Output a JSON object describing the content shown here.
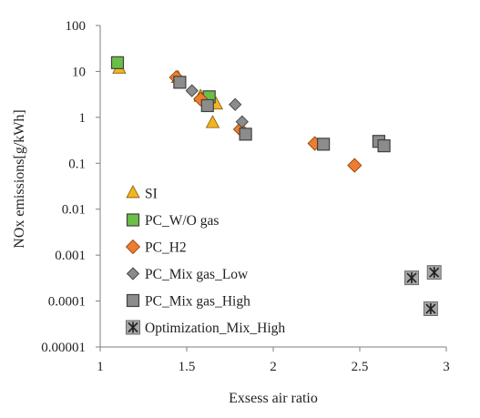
{
  "chart_data": {
    "type": "scatter",
    "xlabel": "Exsess air ratio",
    "ylabel": "NOx emissions[g/kWh]",
    "xlim": [
      1,
      3
    ],
    "ylim": [
      1e-05,
      100
    ],
    "yscale": "log",
    "grid": false,
    "legend_position": "inside-left",
    "x_ticks": [
      "1",
      "1.5",
      "2",
      "2.5",
      "3"
    ],
    "y_ticks": [
      "0.00001",
      "0.0001",
      "0.001",
      "0.01",
      "0.1",
      "1",
      "10",
      "100"
    ],
    "series": [
      {
        "name": "SI",
        "marker": "triangle",
        "color": "#f5b324",
        "points": [
          [
            1.11,
            11.5
          ],
          [
            1.45,
            7.2
          ],
          [
            1.58,
            2.8
          ],
          [
            1.67,
            1.9
          ],
          [
            1.65,
            0.75
          ]
        ]
      },
      {
        "name": "PC_W/O gas",
        "marker": "square",
        "color": "#6bbf47",
        "points": [
          [
            1.1,
            15.5
          ],
          [
            1.63,
            2.8
          ]
        ]
      },
      {
        "name": "PC_H2",
        "marker": "diamond",
        "color": "#ed7d31",
        "points": [
          [
            1.44,
            7.4
          ],
          [
            1.58,
            2.5
          ],
          [
            1.81,
            0.55
          ],
          [
            2.24,
            0.27
          ],
          [
            2.47,
            0.09
          ]
        ]
      },
      {
        "name": "PC_Mix gas_Low",
        "marker": "diamond-small",
        "color": "#8c8c8c",
        "points": [
          [
            1.53,
            3.8
          ],
          [
            1.78,
            1.9
          ],
          [
            1.82,
            0.8
          ]
        ]
      },
      {
        "name": "PC_Mix gas_High",
        "marker": "square",
        "color": "#8c8c8c",
        "points": [
          [
            1.46,
            5.8
          ],
          [
            1.62,
            1.8
          ],
          [
            1.84,
            0.43
          ],
          [
            2.29,
            0.26
          ],
          [
            2.61,
            0.3
          ],
          [
            2.64,
            0.24
          ]
        ]
      },
      {
        "name": "Optimization_Mix_High",
        "marker": "asterisk-square",
        "color": "#a6a6a6",
        "points": [
          [
            2.8,
            0.00032
          ],
          [
            2.93,
            0.00042
          ],
          [
            2.91,
            6.8e-05
          ]
        ]
      }
    ]
  }
}
